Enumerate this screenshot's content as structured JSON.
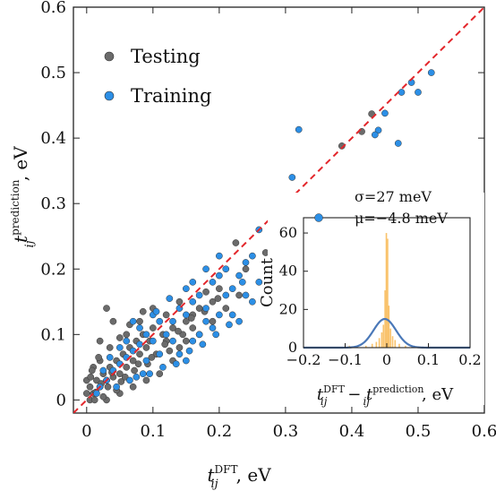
{
  "chart_data": [
    {
      "type": "scatter",
      "xlabel_main": "t",
      "xlabel_sub": "ij",
      "xlabel_sup": "DFT",
      "xlabel_unit": ", eV",
      "ylabel_main": "t",
      "ylabel_sub": "ij",
      "ylabel_sup": "prediction",
      "ylabel_unit": ", eV",
      "xlim": [
        -0.02,
        0.6
      ],
      "ylim": [
        -0.02,
        0.6
      ],
      "xticks": [
        "0",
        "0.1",
        "0.2",
        "0.3",
        "0.4",
        "0.5",
        "0.6"
      ],
      "yticks": [
        "0",
        "0.1",
        "0.2",
        "0.3",
        "0.4",
        "0.5",
        "0.6"
      ],
      "reference_line": {
        "from": [
          -0.02,
          -0.02
        ],
        "to": [
          0.6,
          0.6
        ],
        "style": "dashed",
        "color": "#e3262b"
      },
      "legend_position": "top-left",
      "series": [
        {
          "name": "Testing",
          "color": "#6b6b6b",
          "points": [
            [
              0.43,
              0.437
            ],
            [
              0.415,
              0.41
            ],
            [
              0.385,
              0.388
            ],
            [
              0.28,
              0.23
            ],
            [
              0.27,
              0.225
            ],
            [
              0.225,
              0.24
            ],
            [
              0.2,
              0.17
            ],
            [
              0.19,
              0.15
            ],
            [
              0.18,
              0.165
            ],
            [
              0.17,
              0.14
            ],
            [
              0.16,
              0.13
            ],
            [
              0.15,
              0.12
            ],
            [
              0.14,
              0.15
            ],
            [
              0.13,
              0.11
            ],
            [
              0.12,
              0.13
            ],
            [
              0.115,
              0.1
            ],
            [
              0.1,
              0.11
            ],
            [
              0.095,
              0.09
            ],
            [
              0.09,
              0.08
            ],
            [
              0.085,
              0.1
            ],
            [
              0.08,
              0.07
            ],
            [
              0.075,
              0.09
            ],
            [
              0.07,
              0.06
            ],
            [
              0.065,
              0.08
            ],
            [
              0.06,
              0.05
            ],
            [
              0.055,
              0.07
            ],
            [
              0.05,
              0.04
            ],
            [
              0.045,
              0.06
            ],
            [
              0.04,
              0.035
            ],
            [
              0.04,
              0.12
            ],
            [
              0.035,
              0.05
            ],
            [
              0.03,
              0.03
            ],
            [
              0.03,
              0.14
            ],
            [
              0.025,
              0.04
            ],
            [
              0.02,
              0.02
            ],
            [
              0.02,
              0.09
            ],
            [
              0.015,
              0.03
            ],
            [
              0.01,
              0.01
            ],
            [
              0.01,
              0.05
            ],
            [
              0.005,
              0.0
            ],
            [
              0.005,
              0.02
            ],
            [
              0.0,
              0.01
            ],
            [
              0.0,
              0.03
            ],
            [
              0.012,
              0.0
            ],
            [
              0.03,
              0.0
            ],
            [
              0.05,
              0.01
            ],
            [
              0.07,
              0.02
            ],
            [
              0.09,
              0.03
            ],
            [
              0.11,
              0.04
            ],
            [
              0.13,
              0.06
            ],
            [
              0.15,
              0.09
            ],
            [
              0.17,
              0.1
            ],
            [
              0.19,
              0.12
            ],
            [
              0.21,
              0.14
            ],
            [
              0.23,
              0.16
            ],
            [
              0.24,
              0.2
            ],
            [
              0.06,
              0.1
            ],
            [
              0.08,
              0.12
            ],
            [
              0.1,
              0.14
            ],
            [
              0.12,
              0.09
            ],
            [
              0.14,
              0.08
            ],
            [
              0.16,
              0.11
            ],
            [
              0.02,
              0.06
            ],
            [
              0.035,
              0.08
            ],
            [
              0.05,
              0.095
            ],
            [
              0.065,
              0.115
            ],
            [
              0.085,
              0.135
            ],
            [
              0.105,
              0.07
            ],
            [
              0.125,
              0.075
            ],
            [
              0.145,
              0.1
            ],
            [
              0.045,
              0.015
            ],
            [
              0.025,
              0.005
            ],
            [
              0.008,
              0.045
            ],
            [
              0.018,
              0.065
            ],
            [
              0.032,
              0.02
            ],
            [
              0.052,
              0.028
            ],
            [
              0.072,
              0.045
            ],
            [
              0.092,
              0.055
            ],
            [
              0.006,
              0.035
            ],
            [
              0.014,
              0.012
            ],
            [
              0.022,
              0.025
            ],
            [
              0.038,
              0.042
            ],
            [
              0.058,
              0.035
            ],
            [
              0.078,
              0.055
            ],
            [
              0.098,
              0.065
            ],
            [
              0.118,
              0.085
            ],
            [
              0.138,
              0.105
            ],
            [
              0.158,
              0.125
            ],
            [
              0.178,
              0.135
            ],
            [
              0.198,
              0.155
            ]
          ]
        },
        {
          "name": "Training",
          "color": "#2c8fe6",
          "points": [
            [
              0.52,
              0.5
            ],
            [
              0.49,
              0.485
            ],
            [
              0.5,
              0.47
            ],
            [
              0.475,
              0.47
            ],
            [
              0.45,
              0.438
            ],
            [
              0.47,
              0.392
            ],
            [
              0.44,
              0.412
            ],
            [
              0.435,
              0.405
            ],
            [
              0.32,
              0.413
            ],
            [
              0.31,
              0.34
            ],
            [
              0.3,
              0.29
            ],
            [
              0.29,
              0.27
            ],
            [
              0.26,
              0.26
            ],
            [
              0.25,
              0.22
            ],
            [
              0.24,
              0.21
            ],
            [
              0.26,
              0.18
            ],
            [
              0.25,
              0.15
            ],
            [
              0.23,
              0.19
            ],
            [
              0.22,
              0.17
            ],
            [
              0.2,
              0.19
            ],
            [
              0.21,
              0.16
            ],
            [
              0.19,
              0.18
            ],
            [
              0.18,
              0.14
            ],
            [
              0.17,
              0.16
            ],
            [
              0.16,
              0.15
            ],
            [
              0.15,
              0.13
            ],
            [
              0.14,
              0.14
            ],
            [
              0.13,
              0.12
            ],
            [
              0.12,
              0.1
            ],
            [
              0.11,
              0.12
            ],
            [
              0.1,
              0.09
            ],
            [
              0.09,
              0.1
            ],
            [
              0.08,
              0.085
            ],
            [
              0.07,
              0.075
            ],
            [
              0.06,
              0.065
            ],
            [
              0.05,
              0.055
            ],
            [
              0.04,
              0.045
            ],
            [
              0.03,
              0.03
            ],
            [
              0.02,
              0.02
            ],
            [
              0.2,
              0.13
            ],
            [
              0.19,
              0.11
            ],
            [
              0.18,
              0.12
            ],
            [
              0.17,
              0.1
            ],
            [
              0.16,
              0.09
            ],
            [
              0.22,
              0.13
            ],
            [
              0.24,
              0.16
            ],
            [
              0.23,
              0.12
            ],
            [
              0.14,
              0.07
            ],
            [
              0.15,
              0.06
            ],
            [
              0.13,
              0.09
            ],
            [
              0.11,
              0.07
            ],
            [
              0.09,
              0.06
            ],
            [
              0.1,
              0.13
            ],
            [
              0.08,
              0.11
            ],
            [
              0.06,
              0.09
            ],
            [
              0.07,
              0.12
            ],
            [
              0.05,
              0.08
            ],
            [
              0.2,
              0.22
            ],
            [
              0.21,
              0.2
            ],
            [
              0.18,
              0.2
            ],
            [
              0.16,
              0.18
            ],
            [
              0.15,
              0.17
            ],
            [
              0.125,
              0.155
            ],
            [
              0.105,
              0.135
            ],
            [
              0.085,
              0.04
            ],
            [
              0.065,
              0.03
            ],
            [
              0.045,
              0.02
            ],
            [
              0.035,
              0.065
            ],
            [
              0.025,
              0.045
            ],
            [
              0.015,
              0.01
            ],
            [
              0.195,
              0.1
            ],
            [
              0.215,
              0.115
            ],
            [
              0.235,
              0.18
            ],
            [
              0.175,
              0.085
            ],
            [
              0.155,
              0.075
            ],
            [
              0.135,
              0.055
            ],
            [
              0.115,
              0.05
            ],
            [
              0.095,
              0.04
            ],
            [
              0.075,
              0.035
            ]
          ]
        }
      ]
    },
    {
      "type": "histogram",
      "annotation_sigma": "σ=27 meV",
      "annotation_mu": "μ=−4.8 meV",
      "ylabel": "Count",
      "xlabel_main": "t",
      "xlabel_sub": "ij",
      "xlabel_sup1": "DFT",
      "xlabel_mid": " − ",
      "xlabel_sup2": "prediction",
      "xlabel_unit": ", eV",
      "xlim": [
        -0.2,
        0.2
      ],
      "ylim": [
        0,
        68
      ],
      "xticks": [
        "−0.2",
        "−0.1",
        "0",
        "0.1",
        "0.2"
      ],
      "yticks": [
        "0",
        "20",
        "40",
        "60"
      ],
      "bar_color": "#f9c26b",
      "fit_color": "#4a78b8",
      "fit_peak": 15,
      "fit_mu": -0.0048,
      "fit_sigma": 0.027,
      "bins": [
        {
          "x": -0.09,
          "count": 1
        },
        {
          "x": -0.07,
          "count": 1
        },
        {
          "x": -0.05,
          "count": 1
        },
        {
          "x": -0.035,
          "count": 2
        },
        {
          "x": -0.025,
          "count": 3
        },
        {
          "x": -0.018,
          "count": 5
        },
        {
          "x": -0.012,
          "count": 8
        },
        {
          "x": -0.008,
          "count": 12
        },
        {
          "x": -0.004,
          "count": 30
        },
        {
          "x": -0.001,
          "count": 60
        },
        {
          "x": 0.002,
          "count": 57
        },
        {
          "x": 0.005,
          "count": 22
        },
        {
          "x": 0.009,
          "count": 10
        },
        {
          "x": 0.014,
          "count": 6
        },
        {
          "x": 0.02,
          "count": 4
        },
        {
          "x": 0.03,
          "count": 2
        },
        {
          "x": 0.045,
          "count": 1
        },
        {
          "x": 0.06,
          "count": 1
        }
      ],
      "bin_width": 0.0035
    }
  ]
}
